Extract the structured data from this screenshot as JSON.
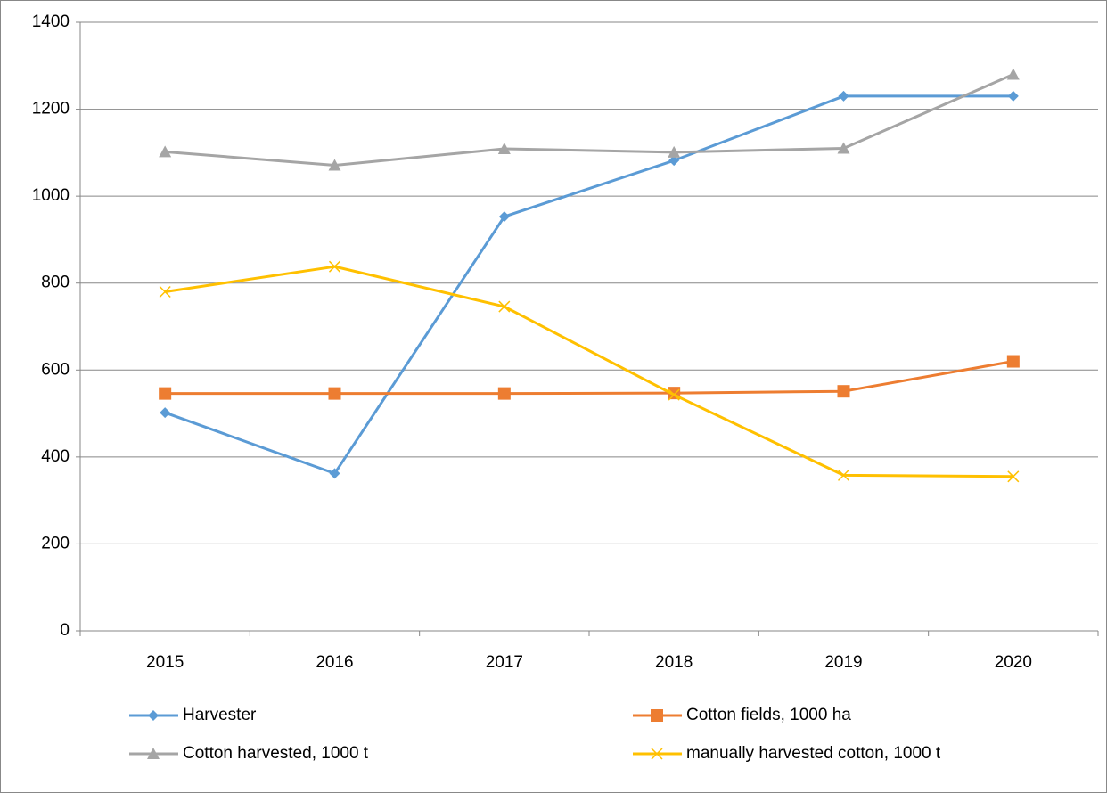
{
  "chart_data": {
    "type": "line",
    "categories": [
      "2015",
      "2016",
      "2017",
      "2018",
      "2019",
      "2020"
    ],
    "series": [
      {
        "name": "Harvester",
        "color": "#5b9bd5",
        "marker": "diamond",
        "values": [
          502,
          362,
          953,
          1082,
          1230,
          1230
        ]
      },
      {
        "name": "Cotton fields, 1000 ha",
        "color": "#ed7d31",
        "marker": "square",
        "values": [
          546,
          546,
          546,
          547,
          551,
          620
        ]
      },
      {
        "name": "Cotton harvested, 1000 t",
        "color": "#a5a5a5",
        "marker": "triangle",
        "values": [
          1102,
          1071,
          1109,
          1101,
          1110,
          1280
        ]
      },
      {
        "name": "manually harvested cotton, 1000 t",
        "color": "#ffc000",
        "marker": "x",
        "values": [
          780,
          838,
          746,
          543,
          358,
          355
        ]
      }
    ],
    "ylim": [
      0,
      1400
    ],
    "yticks": [
      0,
      200,
      400,
      600,
      800,
      1000,
      1200,
      1400
    ],
    "grid": true,
    "legend": "bottom"
  }
}
